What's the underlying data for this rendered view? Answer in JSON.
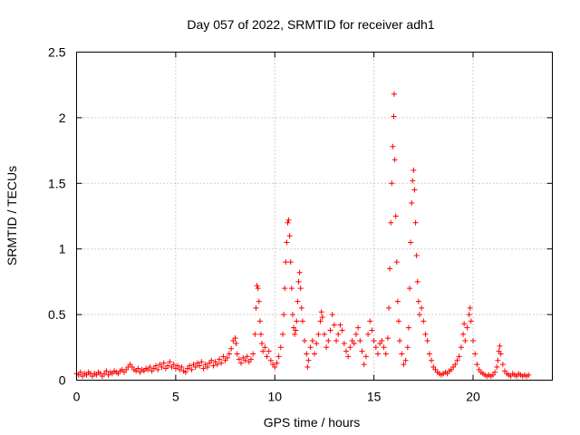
{
  "chart_data": {
    "type": "scatter",
    "title": "Day 057 of 2022, SRMTID for receiver adh1",
    "xlabel": "GPS time / hours",
    "ylabel": "SRMTID / TECUs",
    "xlim": [
      0,
      24
    ],
    "ylim": [
      0,
      2.5
    ],
    "xticks": [
      0,
      5,
      10,
      15,
      20
    ],
    "xtick_labels": [
      "0",
      "5",
      "10",
      "15",
      "20"
    ],
    "yticks": [
      0,
      0.5,
      1,
      1.5,
      2,
      2.5
    ],
    "ytick_labels": [
      "0",
      "0.5",
      "1",
      "1.5",
      "2",
      "2.5"
    ],
    "grid": true,
    "marker": "+",
    "series": [
      {
        "name": "SRMTID",
        "color": "#ff0000",
        "points": [
          [
            0.0,
            0.05
          ],
          [
            0.1,
            0.04
          ],
          [
            0.2,
            0.06
          ],
          [
            0.3,
            0.03
          ],
          [
            0.4,
            0.05
          ],
          [
            0.5,
            0.04
          ],
          [
            0.6,
            0.06
          ],
          [
            0.7,
            0.05
          ],
          [
            0.8,
            0.03
          ],
          [
            0.9,
            0.05
          ],
          [
            1.0,
            0.04
          ],
          [
            1.1,
            0.06
          ],
          [
            1.2,
            0.05
          ],
          [
            1.3,
            0.03
          ],
          [
            1.4,
            0.05
          ],
          [
            1.5,
            0.07
          ],
          [
            1.6,
            0.04
          ],
          [
            1.7,
            0.06
          ],
          [
            1.8,
            0.05
          ],
          [
            1.9,
            0.07
          ],
          [
            2.0,
            0.06
          ],
          [
            2.1,
            0.05
          ],
          [
            2.2,
            0.07
          ],
          [
            2.3,
            0.08
          ],
          [
            2.4,
            0.06
          ],
          [
            2.5,
            0.08
          ],
          [
            2.6,
            0.1
          ],
          [
            2.7,
            0.12
          ],
          [
            2.8,
            0.1
          ],
          [
            2.9,
            0.08
          ],
          [
            3.0,
            0.07
          ],
          [
            3.1,
            0.09
          ],
          [
            3.2,
            0.06
          ],
          [
            3.3,
            0.08
          ],
          [
            3.4,
            0.07
          ],
          [
            3.5,
            0.09
          ],
          [
            3.6,
            0.08
          ],
          [
            3.7,
            0.1
          ],
          [
            3.8,
            0.07
          ],
          [
            3.9,
            0.09
          ],
          [
            4.0,
            0.11
          ],
          [
            4.1,
            0.08
          ],
          [
            4.2,
            0.12
          ],
          [
            4.3,
            0.1
          ],
          [
            4.4,
            0.13
          ],
          [
            4.5,
            0.09
          ],
          [
            4.6,
            0.11
          ],
          [
            4.7,
            0.14
          ],
          [
            4.8,
            0.1
          ],
          [
            4.9,
            0.12
          ],
          [
            5.0,
            0.09
          ],
          [
            5.1,
            0.11
          ],
          [
            5.2,
            0.08
          ],
          [
            5.3,
            0.1
          ],
          [
            5.4,
            0.07
          ],
          [
            5.5,
            0.06
          ],
          [
            5.6,
            0.09
          ],
          [
            5.7,
            0.11
          ],
          [
            5.8,
            0.08
          ],
          [
            5.9,
            0.12
          ],
          [
            6.0,
            0.1
          ],
          [
            6.1,
            0.13
          ],
          [
            6.2,
            0.11
          ],
          [
            6.3,
            0.14
          ],
          [
            6.4,
            0.09
          ],
          [
            6.5,
            0.12
          ],
          [
            6.6,
            0.1
          ],
          [
            6.7,
            0.13
          ],
          [
            6.8,
            0.15
          ],
          [
            6.9,
            0.11
          ],
          [
            7.0,
            0.14
          ],
          [
            7.1,
            0.12
          ],
          [
            7.2,
            0.16
          ],
          [
            7.3,
            0.13
          ],
          [
            7.4,
            0.18
          ],
          [
            7.5,
            0.15
          ],
          [
            7.6,
            0.17
          ],
          [
            7.7,
            0.2
          ],
          [
            7.8,
            0.24
          ],
          [
            7.9,
            0.3
          ],
          [
            8.0,
            0.32
          ],
          [
            8.05,
            0.28
          ],
          [
            8.1,
            0.2
          ],
          [
            8.2,
            0.16
          ],
          [
            8.3,
            0.13
          ],
          [
            8.4,
            0.17
          ],
          [
            8.5,
            0.15
          ],
          [
            8.6,
            0.18
          ],
          [
            8.7,
            0.14
          ],
          [
            8.8,
            0.16
          ],
          [
            8.9,
            0.2
          ],
          [
            9.0,
            0.35
          ],
          [
            9.05,
            0.55
          ],
          [
            9.1,
            0.72
          ],
          [
            9.15,
            0.7
          ],
          [
            9.2,
            0.6
          ],
          [
            9.25,
            0.45
          ],
          [
            9.3,
            0.35
          ],
          [
            9.35,
            0.28
          ],
          [
            9.4,
            0.22
          ],
          [
            9.5,
            0.25
          ],
          [
            9.6,
            0.18
          ],
          [
            9.7,
            0.22
          ],
          [
            9.8,
            0.15
          ],
          [
            9.9,
            0.12
          ],
          [
            10.0,
            0.1
          ],
          [
            10.1,
            0.13
          ],
          [
            10.2,
            0.18
          ],
          [
            10.3,
            0.25
          ],
          [
            10.4,
            0.35
          ],
          [
            10.45,
            0.5
          ],
          [
            10.5,
            0.7
          ],
          [
            10.55,
            0.9
          ],
          [
            10.6,
            1.05
          ],
          [
            10.65,
            1.2
          ],
          [
            10.7,
            1.22
          ],
          [
            10.75,
            1.1
          ],
          [
            10.8,
            0.9
          ],
          [
            10.85,
            0.7
          ],
          [
            10.9,
            0.5
          ],
          [
            10.95,
            0.4
          ],
          [
            11.0,
            0.35
          ],
          [
            11.05,
            0.38
          ],
          [
            11.1,
            0.45
          ],
          [
            11.15,
            0.6
          ],
          [
            11.2,
            0.75
          ],
          [
            11.25,
            0.82
          ],
          [
            11.3,
            0.7
          ],
          [
            11.35,
            0.55
          ],
          [
            11.4,
            0.45
          ],
          [
            11.5,
            0.3
          ],
          [
            11.6,
            0.2
          ],
          [
            11.65,
            0.1
          ],
          [
            11.7,
            0.15
          ],
          [
            11.8,
            0.25
          ],
          [
            11.9,
            0.3
          ],
          [
            12.0,
            0.2
          ],
          [
            12.1,
            0.28
          ],
          [
            12.2,
            0.35
          ],
          [
            12.3,
            0.45
          ],
          [
            12.35,
            0.52
          ],
          [
            12.4,
            0.48
          ],
          [
            12.5,
            0.35
          ],
          [
            12.6,
            0.25
          ],
          [
            12.7,
            0.3
          ],
          [
            12.8,
            0.38
          ],
          [
            12.9,
            0.5
          ],
          [
            13.0,
            0.42
          ],
          [
            13.1,
            0.3
          ],
          [
            13.2,
            0.35
          ],
          [
            13.3,
            0.42
          ],
          [
            13.4,
            0.38
          ],
          [
            13.5,
            0.28
          ],
          [
            13.6,
            0.22
          ],
          [
            13.7,
            0.18
          ],
          [
            13.8,
            0.25
          ],
          [
            13.9,
            0.3
          ],
          [
            14.0,
            0.28
          ],
          [
            14.1,
            0.35
          ],
          [
            14.2,
            0.4
          ],
          [
            14.3,
            0.3
          ],
          [
            14.4,
            0.22
          ],
          [
            14.5,
            0.12
          ],
          [
            14.6,
            0.18
          ],
          [
            14.7,
            0.35
          ],
          [
            14.8,
            0.45
          ],
          [
            14.9,
            0.38
          ],
          [
            15.0,
            0.3
          ],
          [
            15.1,
            0.25
          ],
          [
            15.2,
            0.2
          ],
          [
            15.3,
            0.28
          ],
          [
            15.4,
            0.3
          ],
          [
            15.5,
            0.25
          ],
          [
            15.6,
            0.2
          ],
          [
            15.7,
            0.32
          ],
          [
            15.75,
            0.55
          ],
          [
            15.8,
            0.85
          ],
          [
            15.85,
            1.2
          ],
          [
            15.9,
            1.5
          ],
          [
            15.95,
            1.78
          ],
          [
            16.0,
            2.01
          ],
          [
            16.02,
            2.18
          ],
          [
            16.05,
            1.68
          ],
          [
            16.1,
            1.25
          ],
          [
            16.15,
            0.9
          ],
          [
            16.2,
            0.6
          ],
          [
            16.25,
            0.45
          ],
          [
            16.3,
            0.3
          ],
          [
            16.4,
            0.2
          ],
          [
            16.5,
            0.12
          ],
          [
            16.6,
            0.15
          ],
          [
            16.7,
            0.25
          ],
          [
            16.75,
            0.4
          ],
          [
            16.8,
            0.7
          ],
          [
            16.85,
            1.05
          ],
          [
            16.9,
            1.35
          ],
          [
            16.95,
            1.52
          ],
          [
            17.0,
            1.6
          ],
          [
            17.05,
            1.45
          ],
          [
            17.1,
            1.2
          ],
          [
            17.15,
            0.95
          ],
          [
            17.2,
            0.75
          ],
          [
            17.25,
            0.6
          ],
          [
            17.3,
            0.5
          ],
          [
            17.4,
            0.55
          ],
          [
            17.5,
            0.45
          ],
          [
            17.6,
            0.35
          ],
          [
            17.7,
            0.3
          ],
          [
            17.8,
            0.2
          ],
          [
            17.9,
            0.15
          ],
          [
            18.0,
            0.1
          ],
          [
            18.1,
            0.08
          ],
          [
            18.2,
            0.06
          ],
          [
            18.3,
            0.05
          ],
          [
            18.4,
            0.04
          ],
          [
            18.5,
            0.05
          ],
          [
            18.6,
            0.06
          ],
          [
            18.7,
            0.05
          ],
          [
            18.8,
            0.07
          ],
          [
            18.9,
            0.08
          ],
          [
            19.0,
            0.1
          ],
          [
            19.1,
            0.12
          ],
          [
            19.2,
            0.15
          ],
          [
            19.3,
            0.18
          ],
          [
            19.4,
            0.25
          ],
          [
            19.5,
            0.35
          ],
          [
            19.55,
            0.43
          ],
          [
            19.6,
            0.3
          ],
          [
            19.7,
            0.4
          ],
          [
            19.8,
            0.5
          ],
          [
            19.85,
            0.55
          ],
          [
            19.9,
            0.45
          ],
          [
            20.0,
            0.3
          ],
          [
            20.1,
            0.2
          ],
          [
            20.2,
            0.12
          ],
          [
            20.3,
            0.08
          ],
          [
            20.4,
            0.06
          ],
          [
            20.5,
            0.05
          ],
          [
            20.6,
            0.04
          ],
          [
            20.7,
            0.03
          ],
          [
            20.8,
            0.04
          ],
          [
            20.9,
            0.03
          ],
          [
            21.0,
            0.04
          ],
          [
            21.1,
            0.06
          ],
          [
            21.2,
            0.1
          ],
          [
            21.25,
            0.15
          ],
          [
            21.3,
            0.22
          ],
          [
            21.35,
            0.26
          ],
          [
            21.4,
            0.2
          ],
          [
            21.5,
            0.12
          ],
          [
            21.6,
            0.07
          ],
          [
            21.7,
            0.05
          ],
          [
            21.8,
            0.04
          ],
          [
            21.9,
            0.03
          ],
          [
            22.0,
            0.05
          ],
          [
            22.1,
            0.04
          ],
          [
            22.2,
            0.03
          ],
          [
            22.3,
            0.05
          ],
          [
            22.4,
            0.04
          ],
          [
            22.5,
            0.03
          ],
          [
            22.6,
            0.04
          ],
          [
            22.7,
            0.03
          ],
          [
            22.8,
            0.04
          ]
        ]
      }
    ]
  }
}
